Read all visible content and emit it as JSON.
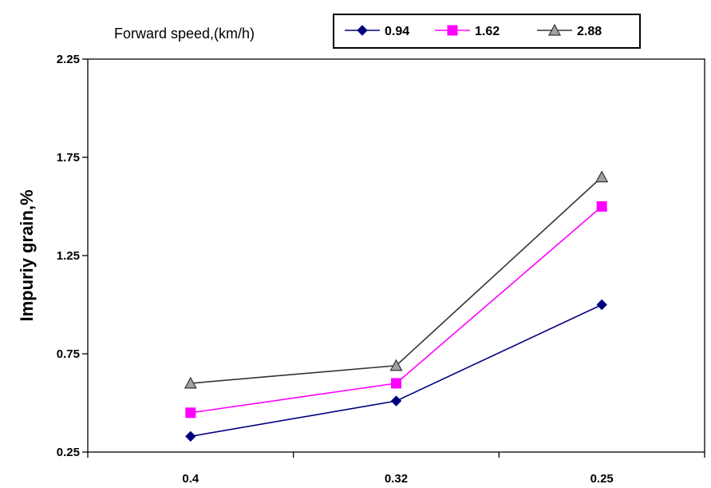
{
  "chart_data": {
    "type": "line",
    "categories": [
      "0.4",
      "0.32",
      "0.25"
    ],
    "ylabel": "Impuriy grain,%",
    "ylim": [
      0.25,
      2.25
    ],
    "yticks": [
      "0.25",
      "0.75",
      "1.25",
      "1.75",
      "2.25"
    ],
    "grid": false,
    "legend": {
      "title": "Forward speed,(km/h)",
      "placement": "top"
    },
    "series": [
      {
        "name": "0.94",
        "values": [
          0.33,
          0.51,
          1.0
        ],
        "color": "#00007f",
        "marker": "diamond"
      },
      {
        "name": "1.62",
        "values": [
          0.45,
          0.6,
          1.5
        ],
        "color": "#ff00ff",
        "marker": "square"
      },
      {
        "name": "2.88",
        "values": [
          0.6,
          0.69,
          1.65
        ],
        "color": "#333333",
        "marker": "triangle"
      }
    ]
  }
}
